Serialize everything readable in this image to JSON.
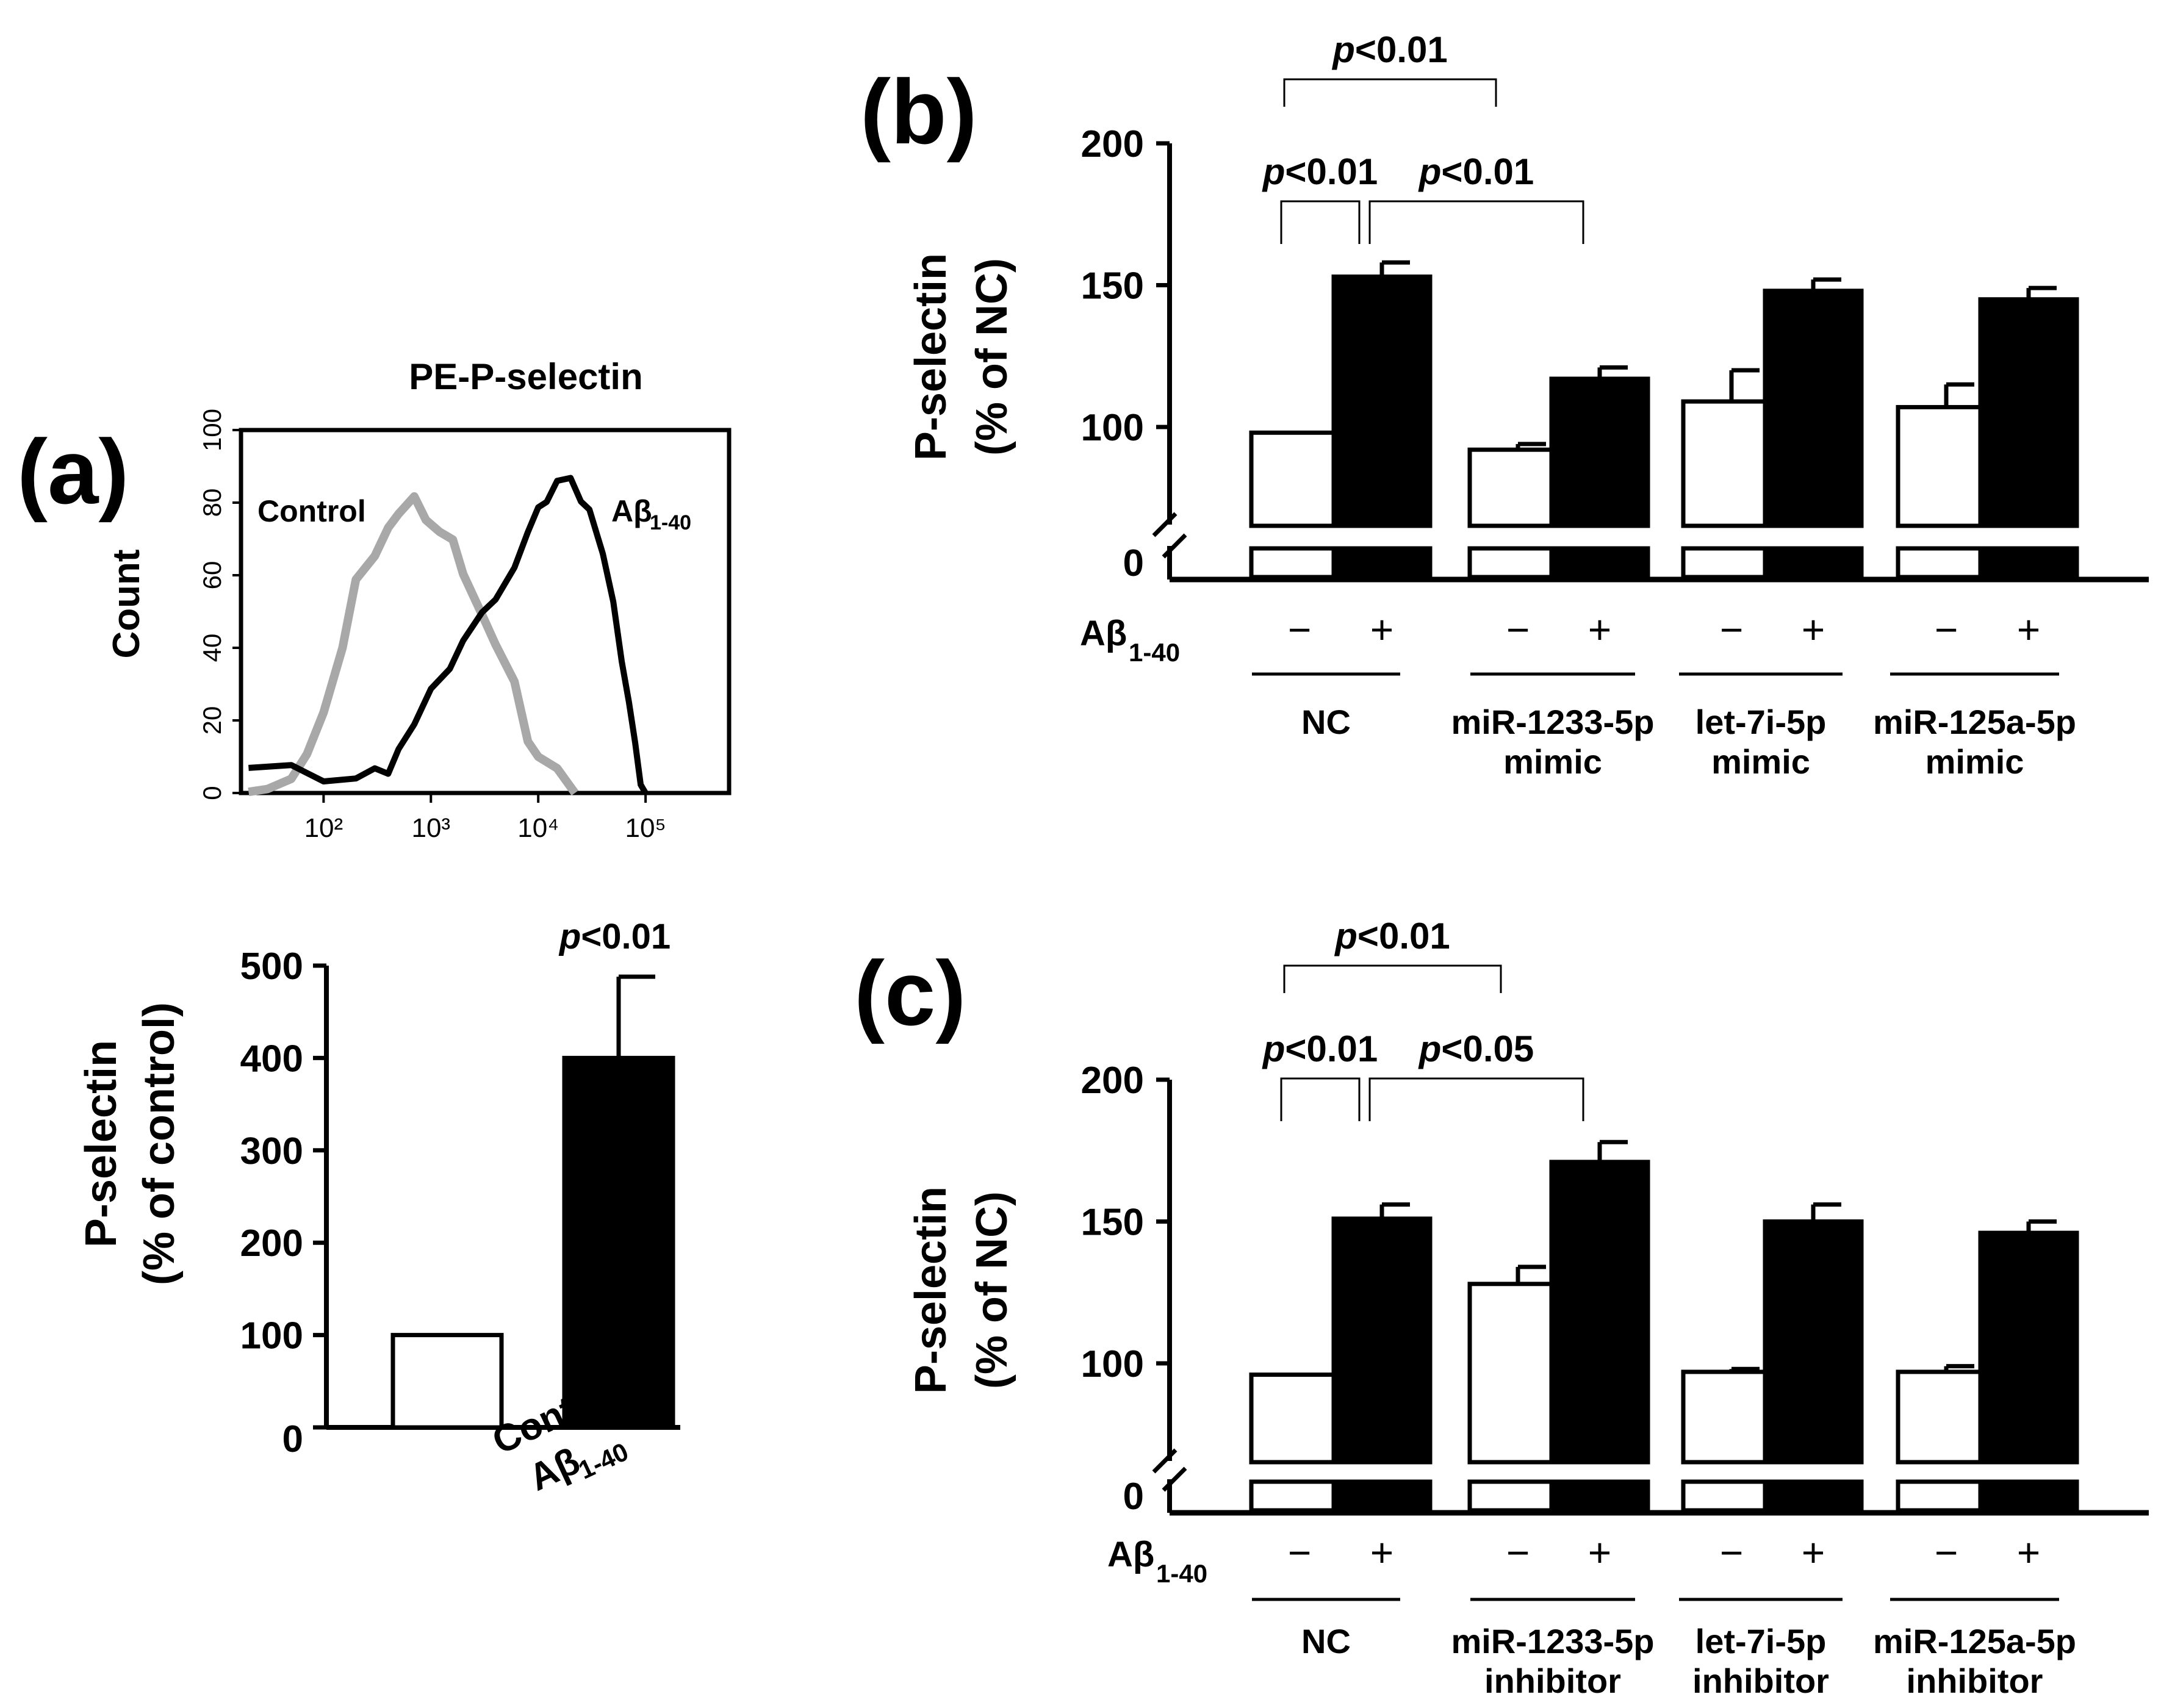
{
  "figure": {
    "panel_a_letter": "(a)",
    "panel_b_letter": "(b)",
    "panel_c_letter": "(c)"
  },
  "chart_data": [
    {
      "id": "a-histogram",
      "type": "line",
      "title": "PE-P-selectin",
      "ylabel": "Count",
      "ylim": [
        0,
        100
      ],
      "yticks": [
        "0",
        "20",
        "40",
        "60",
        "80",
        "100"
      ],
      "xscale": "log",
      "xticks": [
        "10²",
        "10³",
        "10⁴",
        "10⁵"
      ],
      "series": [
        {
          "name": "Control",
          "color": "#a8a8a8",
          "x": [
            20,
            30,
            50,
            70,
            100,
            150,
            200,
            300,
            400,
            500,
            700,
            900,
            1200,
            1600,
            2000,
            3000,
            4000,
            6000,
            8000,
            10000,
            15000,
            22000
          ],
          "y": [
            3,
            2,
            3,
            8,
            24,
            40,
            57,
            68,
            74,
            76,
            79,
            77,
            72,
            68,
            63,
            50,
            40,
            28,
            16,
            10,
            5,
            0
          ]
        },
        {
          "name": "Aβ1-40",
          "color": "#000000",
          "x": [
            20,
            50,
            100,
            200,
            300,
            400,
            500,
            700,
            1000,
            1500,
            2000,
            3000,
            4000,
            6000,
            8000,
            10000,
            12000,
            15000,
            20000,
            25000,
            30000,
            40000,
            50000,
            60000,
            70000,
            80000,
            90000,
            100000
          ],
          "y": [
            6,
            5,
            5,
            4,
            5,
            8,
            13,
            18,
            26,
            36,
            42,
            48,
            56,
            63,
            71,
            76,
            82,
            86,
            85,
            83,
            79,
            65,
            50,
            38,
            25,
            12,
            5,
            0
          ]
        }
      ]
    },
    {
      "id": "a-bar",
      "type": "bar",
      "ylabel_line1": "P-selectin",
      "ylabel_line2": "(% of control)",
      "ylim": [
        0,
        500
      ],
      "yticks": [
        "0",
        "100",
        "200",
        "300",
        "400",
        "500"
      ],
      "categories": [
        "Control",
        "Aβ1-40"
      ],
      "values": [
        100,
        400
      ],
      "errors": [
        0,
        88
      ],
      "fills": [
        "#ffffff",
        "#000000"
      ],
      "annotation": "p<0.01"
    },
    {
      "id": "b-bar",
      "type": "bar",
      "ylabel_line1": "P-selectin",
      "ylabel_line2": "(% of NC)",
      "ylim": [
        0,
        200
      ],
      "yticks": [
        "0",
        "100",
        "150",
        "200"
      ],
      "abeta_label": "Aβ1-40",
      "groups": [
        {
          "line1": "NC",
          "line2": "",
          "minus": "−",
          "plus": "+",
          "values": [
            98,
            153
          ],
          "errors": [
            0,
            5
          ]
        },
        {
          "line1": "miR-1233-5p",
          "line2": "mimic",
          "minus": "−",
          "plus": "+",
          "values": [
            92,
            117
          ],
          "errors": [
            2,
            4
          ]
        },
        {
          "line1": "let-7i-5p",
          "line2": "mimic",
          "minus": "−",
          "plus": "+",
          "values": [
            109,
            148
          ],
          "errors": [
            11,
            4
          ]
        },
        {
          "line1": "miR-125a-5p",
          "line2": "mimic",
          "minus": "−",
          "plus": "+",
          "values": [
            107,
            145
          ],
          "errors": [
            8,
            4
          ]
        }
      ],
      "comparisons": [
        "p<0.01",
        "p<0.01",
        "p<0.01"
      ]
    },
    {
      "id": "c-bar",
      "type": "bar",
      "ylabel_line1": "P-selectin",
      "ylabel_line2": "(% of NC)",
      "ylim": [
        0,
        200
      ],
      "yticks": [
        "0",
        "100",
        "150",
        "200"
      ],
      "abeta_label": "Aβ1-40",
      "groups": [
        {
          "line1": "NC",
          "line2": "",
          "minus": "−",
          "plus": "+",
          "values": [
            96,
            151
          ],
          "errors": [
            0,
            5
          ]
        },
        {
          "line1": "miR-1233-5p",
          "line2": "inhibitor",
          "minus": "−",
          "plus": "+",
          "values": [
            128,
            171
          ],
          "errors": [
            6,
            7
          ]
        },
        {
          "line1": "let-7i-5p",
          "line2": "inhibitor",
          "minus": "−",
          "plus": "+",
          "values": [
            97,
            150
          ],
          "errors": [
            1,
            6
          ]
        },
        {
          "line1": "miR-125a-5p",
          "line2": "inhibitor",
          "minus": "−",
          "plus": "+",
          "values": [
            97,
            146
          ],
          "errors": [
            2,
            4
          ]
        }
      ],
      "comparisons": [
        "p<0.01",
        "p<0.01",
        "p<0.05"
      ]
    }
  ]
}
